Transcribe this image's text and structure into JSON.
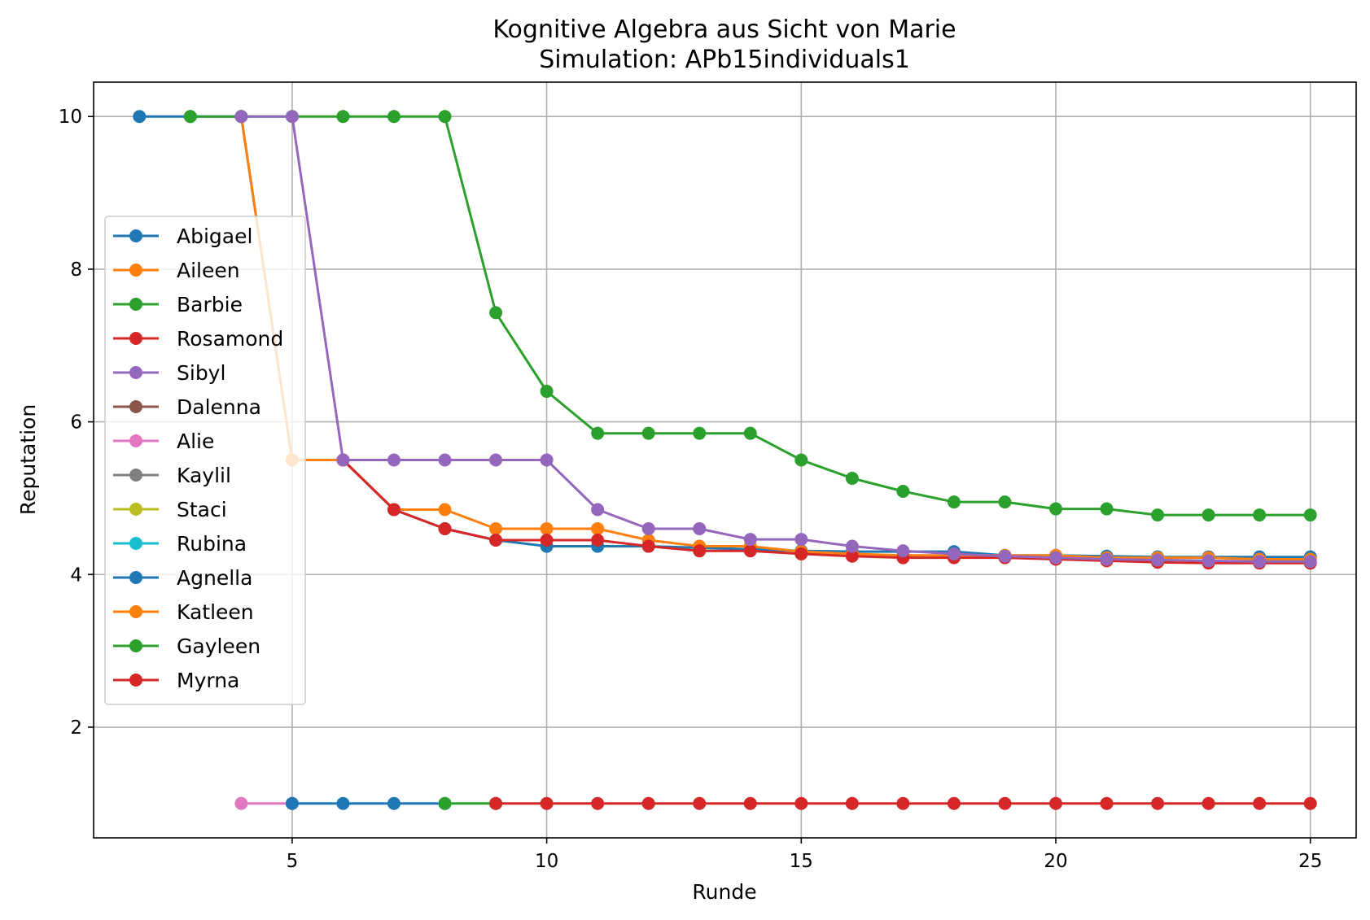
{
  "chart_data": {
    "type": "line",
    "title": "Kognitive Algebra aus Sicht von Marie",
    "subtitle": "Simulation: APb15individuals1",
    "xlabel": "Runde",
    "ylabel": "Reputation",
    "xlim": [
      1.1,
      25.9
    ],
    "ylim": [
      0.55,
      10.45
    ],
    "xticks": [
      5,
      10,
      15,
      20,
      25
    ],
    "yticks": [
      2,
      4,
      6,
      8,
      10
    ],
    "grid": true,
    "legend_position": "center-left",
    "series": [
      {
        "name": "Abigael",
        "color": "#1f77b4",
        "x": [
          2,
          3,
          4,
          5,
          6,
          7,
          8,
          9,
          10,
          11,
          12,
          13,
          14,
          15,
          16,
          17,
          18,
          19,
          20,
          21,
          22,
          23,
          24,
          25
        ],
        "y": [
          10,
          10,
          10,
          5.5,
          5.5,
          4.85,
          4.6,
          4.45,
          4.37,
          4.37,
          4.37,
          4.35,
          4.33,
          4.31,
          4.3,
          4.3,
          4.3,
          4.25,
          4.25,
          4.24,
          4.23,
          4.23,
          4.23,
          4.23
        ]
      },
      {
        "name": "Aileen",
        "color": "#ff7f0e",
        "x": [
          4,
          5,
          6,
          7,
          8,
          9,
          10,
          11,
          12,
          13,
          14,
          15,
          16,
          17,
          18,
          19,
          20,
          21,
          22,
          23,
          24,
          25
        ],
        "y": [
          10,
          5.5,
          5.5,
          4.85,
          4.85,
          4.6,
          4.6,
          4.6,
          4.45,
          4.37,
          4.37,
          4.3,
          4.27,
          4.25,
          4.25,
          4.25,
          4.25,
          4.22,
          4.22,
          4.22,
          4.2,
          4.2
        ]
      },
      {
        "name": "Barbie",
        "color": "#2ca02c",
        "x": [
          3,
          4,
          5,
          6,
          7,
          8,
          9,
          10,
          11,
          12,
          13,
          14,
          15,
          16,
          17,
          18,
          19,
          20,
          21,
          22,
          23,
          24,
          25
        ],
        "y": [
          10,
          10,
          10,
          10,
          10,
          10,
          7.43,
          6.4,
          5.85,
          5.85,
          5.85,
          5.85,
          5.5,
          5.26,
          5.09,
          4.95,
          4.95,
          4.86,
          4.86,
          4.78,
          4.78,
          4.78,
          4.78
        ]
      },
      {
        "name": "Rosamond",
        "color": "#d62728",
        "x": [
          6,
          7,
          8,
          9,
          10,
          11,
          12,
          13,
          14,
          15,
          16,
          17,
          18,
          19,
          20,
          21,
          22,
          23,
          24,
          25
        ],
        "y": [
          5.5,
          4.85,
          4.6,
          4.45,
          4.45,
          4.45,
          4.37,
          4.31,
          4.31,
          4.27,
          4.24,
          4.22,
          4.22,
          4.22,
          4.2,
          4.18,
          4.16,
          4.15,
          4.15,
          4.15
        ]
      },
      {
        "name": "Sibyl",
        "color": "#9467bd",
        "x": [
          4,
          5,
          6,
          7,
          8,
          9,
          10,
          11,
          12,
          13,
          14,
          15,
          16,
          17,
          18,
          19,
          20,
          21,
          22,
          23,
          24,
          25
        ],
        "y": [
          10,
          10,
          5.5,
          5.5,
          5.5,
          5.5,
          5.5,
          4.85,
          4.6,
          4.6,
          4.46,
          4.46,
          4.37,
          4.31,
          4.27,
          4.24,
          4.22,
          4.2,
          4.19,
          4.18,
          4.17,
          4.17
        ]
      },
      {
        "name": "Dalenna",
        "color": "#8c564b",
        "x": [],
        "y": []
      },
      {
        "name": "Alie",
        "color": "#e377c2",
        "x": [
          4,
          5
        ],
        "y": [
          1,
          1
        ]
      },
      {
        "name": "Kaylil",
        "color": "#7f7f7f",
        "x": [],
        "y": []
      },
      {
        "name": "Staci",
        "color": "#bcbd22",
        "x": [],
        "y": []
      },
      {
        "name": "Rubina",
        "color": "#17becf",
        "x": [],
        "y": []
      },
      {
        "name": "Agnella",
        "color": "#1f77b4",
        "x": [
          5,
          6,
          7,
          8
        ],
        "y": [
          1,
          1,
          1,
          1
        ]
      },
      {
        "name": "Katleen",
        "color": "#ff7f0e",
        "x": [],
        "y": []
      },
      {
        "name": "Gayleen",
        "color": "#2ca02c",
        "x": [
          8,
          9
        ],
        "y": [
          1,
          1
        ]
      },
      {
        "name": "Myrna",
        "color": "#d62728",
        "x": [
          9,
          10,
          11,
          12,
          13,
          14,
          15,
          16,
          17,
          18,
          19,
          20,
          21,
          22,
          23,
          24,
          25
        ],
        "y": [
          1,
          1,
          1,
          1,
          1,
          1,
          1,
          1,
          1,
          1,
          1,
          1,
          1,
          1,
          1,
          1,
          1
        ]
      }
    ]
  }
}
